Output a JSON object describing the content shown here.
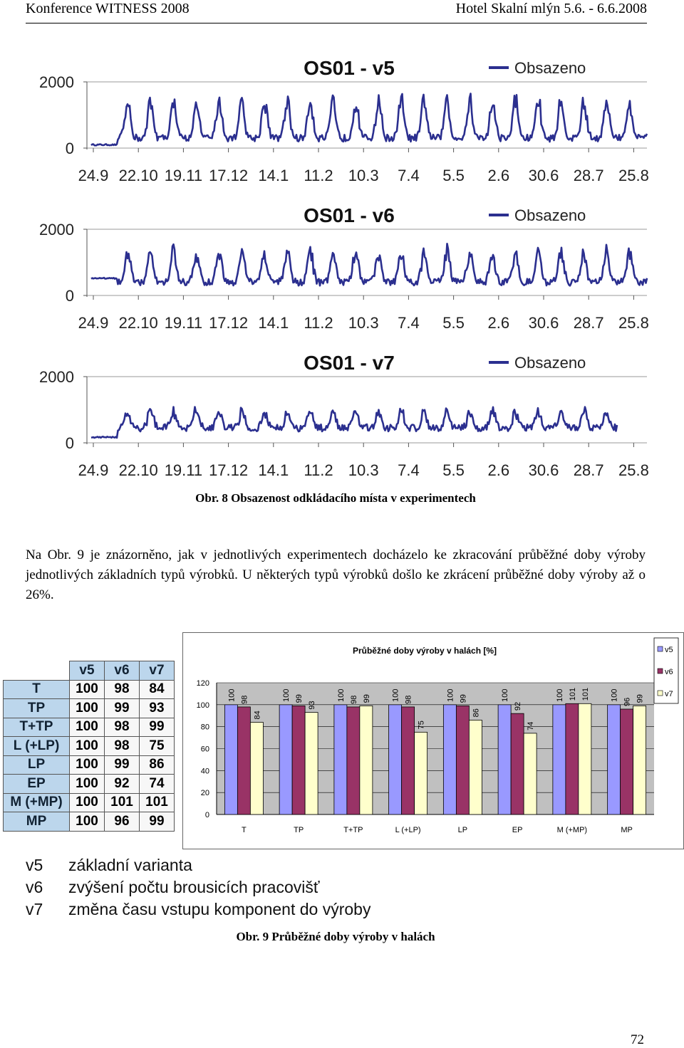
{
  "header": {
    "left": "Konference WITNESS 2008",
    "right": "Hotel Skalní mlýn 5.6. - 6.6.2008"
  },
  "figure8": {
    "charts": [
      {
        "title": "OS01 - v5",
        "legend": "Obsazeno"
      },
      {
        "title": "OS01 - v6",
        "legend": "Obsazeno"
      },
      {
        "title": "OS01 - v7",
        "legend": "Obsazeno"
      }
    ],
    "caption": "Obr. 8 Obsazenost odkládacího místa v experimentech"
  },
  "paragraph": "Na Obr. 9 je znázorněno, jak v jednotlivých experimentech docházelo ke zkracování průběžné doby výroby jednotlivých základních typů výrobků. U některých typů výrobků došlo ke zkrácení průběžné doby výroby až o 26%.",
  "table": {
    "columns": [
      "v5",
      "v6",
      "v7"
    ],
    "rows": [
      {
        "label": "T",
        "v": [
          "100",
          "98",
          "84"
        ]
      },
      {
        "label": "TP",
        "v": [
          "100",
          "99",
          "93"
        ]
      },
      {
        "label": "T+TP",
        "v": [
          "100",
          "98",
          "99"
        ]
      },
      {
        "label": "L (+LP)",
        "v": [
          "100",
          "98",
          "75"
        ]
      },
      {
        "label": "LP",
        "v": [
          "100",
          "99",
          "86"
        ]
      },
      {
        "label": "EP",
        "v": [
          "100",
          "92",
          "74"
        ]
      },
      {
        "label": "M (+MP)",
        "v": [
          "100",
          "101",
          "101"
        ]
      },
      {
        "label": "MP",
        "v": [
          "100",
          "96",
          "99"
        ]
      }
    ]
  },
  "legend_variants": [
    {
      "key": "v5",
      "text": "základní varianta"
    },
    {
      "key": "v6",
      "text": "zvýšení počtu brousicích pracovišť"
    },
    {
      "key": "v7",
      "text": "změna času vstupu komponent do výroby"
    }
  ],
  "caption9": "Obr. 9 Průběžné doby výroby v halách",
  "page_number": "72",
  "colors": {
    "line": "#2b2f8f",
    "v5": "#9999ff",
    "v6": "#993366",
    "v7": "#ffffcc",
    "plot_bg": "#c0c0c0"
  },
  "chart_data": [
    {
      "type": "line",
      "title": "OS01 - v5",
      "legend": "Obsazeno",
      "x_tick_labels": [
        "24.9",
        "22.10",
        "19.11",
        "17.12",
        "14.1",
        "11.2",
        "10.3",
        "7.4",
        "5.5",
        "2.6",
        "30.6",
        "28.7",
        "25.8"
      ],
      "y_tick_labels": [
        "0",
        "2000"
      ],
      "ylim": [
        0,
        2000
      ],
      "series": [
        {
          "name": "Obsazeno",
          "base": 300,
          "peak": 1400,
          "start_flat": 80
        }
      ]
    },
    {
      "type": "line",
      "title": "OS01 - v6",
      "legend": "Obsazeno",
      "x_tick_labels": [
        "24.9",
        "22.10",
        "19.11",
        "17.12",
        "14.1",
        "11.2",
        "10.3",
        "7.4",
        "5.5",
        "2.6",
        "30.6",
        "28.7",
        "25.8"
      ],
      "y_tick_labels": [
        "0",
        "2000"
      ],
      "ylim": [
        0,
        2000
      ],
      "series": [
        {
          "name": "Obsazeno",
          "base": 400,
          "peak": 1300,
          "start_flat": 500
        }
      ]
    },
    {
      "type": "line",
      "title": "OS01 - v7",
      "legend": "Obsazeno",
      "x_tick_labels": [
        "24.9",
        "22.10",
        "19.11",
        "17.12",
        "14.1",
        "11.2",
        "10.3",
        "7.4",
        "5.5",
        "2.6",
        "30.6",
        "28.7",
        "25.8"
      ],
      "y_tick_labels": [
        "0",
        "2000"
      ],
      "ylim": [
        0,
        2000
      ],
      "series": [
        {
          "name": "Obsazeno",
          "base": 450,
          "peak": 950,
          "start_flat": 150
        }
      ]
    },
    {
      "type": "bar",
      "title": "Průběžné doby výroby v halách [%]",
      "categories": [
        "T",
        "TP",
        "T+TP",
        "L (+LP)",
        "LP",
        "EP",
        "M (+MP)",
        "MP"
      ],
      "ylim": [
        0,
        120
      ],
      "y_ticks": [
        0,
        20,
        40,
        60,
        80,
        100,
        120
      ],
      "series": [
        {
          "name": "v5",
          "values": [
            100,
            100,
            100,
            100,
            100,
            100,
            100,
            100
          ]
        },
        {
          "name": "v6",
          "values": [
            98,
            99,
            98,
            98,
            99,
            92,
            101,
            96
          ]
        },
        {
          "name": "v7",
          "values": [
            84,
            93,
            99,
            75,
            86,
            74,
            101,
            99
          ]
        }
      ]
    }
  ]
}
